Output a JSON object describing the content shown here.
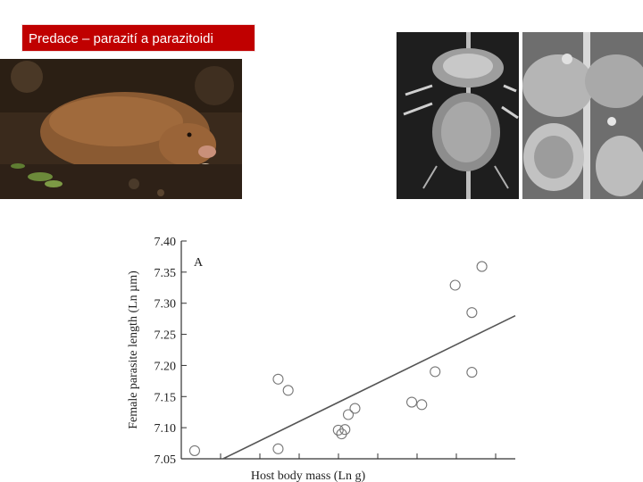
{
  "slide": {
    "title": "Predace – parazití a parazitoidi"
  },
  "images": {
    "mole_photo": "mole-rat-photo",
    "sem_photo_left": "louse-micrograph",
    "sem_photo_right": "louse-micrograph-closeup"
  },
  "chart_data": {
    "type": "scatter",
    "panel_label": "A",
    "xlabel": "Host body mass (Ln g)",
    "ylabel": "Female parasite length (Ln µm)",
    "yticks": [
      "7.40",
      "7.35",
      "7.30",
      "7.25",
      "7.20",
      "7.15",
      "7.10",
      "7.05"
    ],
    "ylim": [
      7.05,
      7.4
    ],
    "xlim": [
      0,
      100
    ],
    "x_tick_labels_visible": false,
    "grid": false,
    "marker": "open-circle",
    "points": [
      {
        "x": 4,
        "y": 7.063
      },
      {
        "x": 29,
        "y": 7.178
      },
      {
        "x": 32,
        "y": 7.16
      },
      {
        "x": 29,
        "y": 7.066
      },
      {
        "x": 47,
        "y": 7.096
      },
      {
        "x": 48,
        "y": 7.09
      },
      {
        "x": 49,
        "y": 7.097
      },
      {
        "x": 50,
        "y": 7.121
      },
      {
        "x": 52,
        "y": 7.131
      },
      {
        "x": 69,
        "y": 7.141
      },
      {
        "x": 72,
        "y": 7.137
      },
      {
        "x": 76,
        "y": 7.19
      },
      {
        "x": 82,
        "y": 7.329
      },
      {
        "x": 87,
        "y": 7.285
      },
      {
        "x": 87,
        "y": 7.189
      },
      {
        "x": 90,
        "y": 7.359
      }
    ],
    "regression_line": {
      "x": [
        12.5,
        100
      ],
      "y": [
        7.05,
        7.28
      ]
    },
    "colors": {
      "axis": "#333333",
      "marker": "#777777",
      "line": "#555555"
    }
  }
}
